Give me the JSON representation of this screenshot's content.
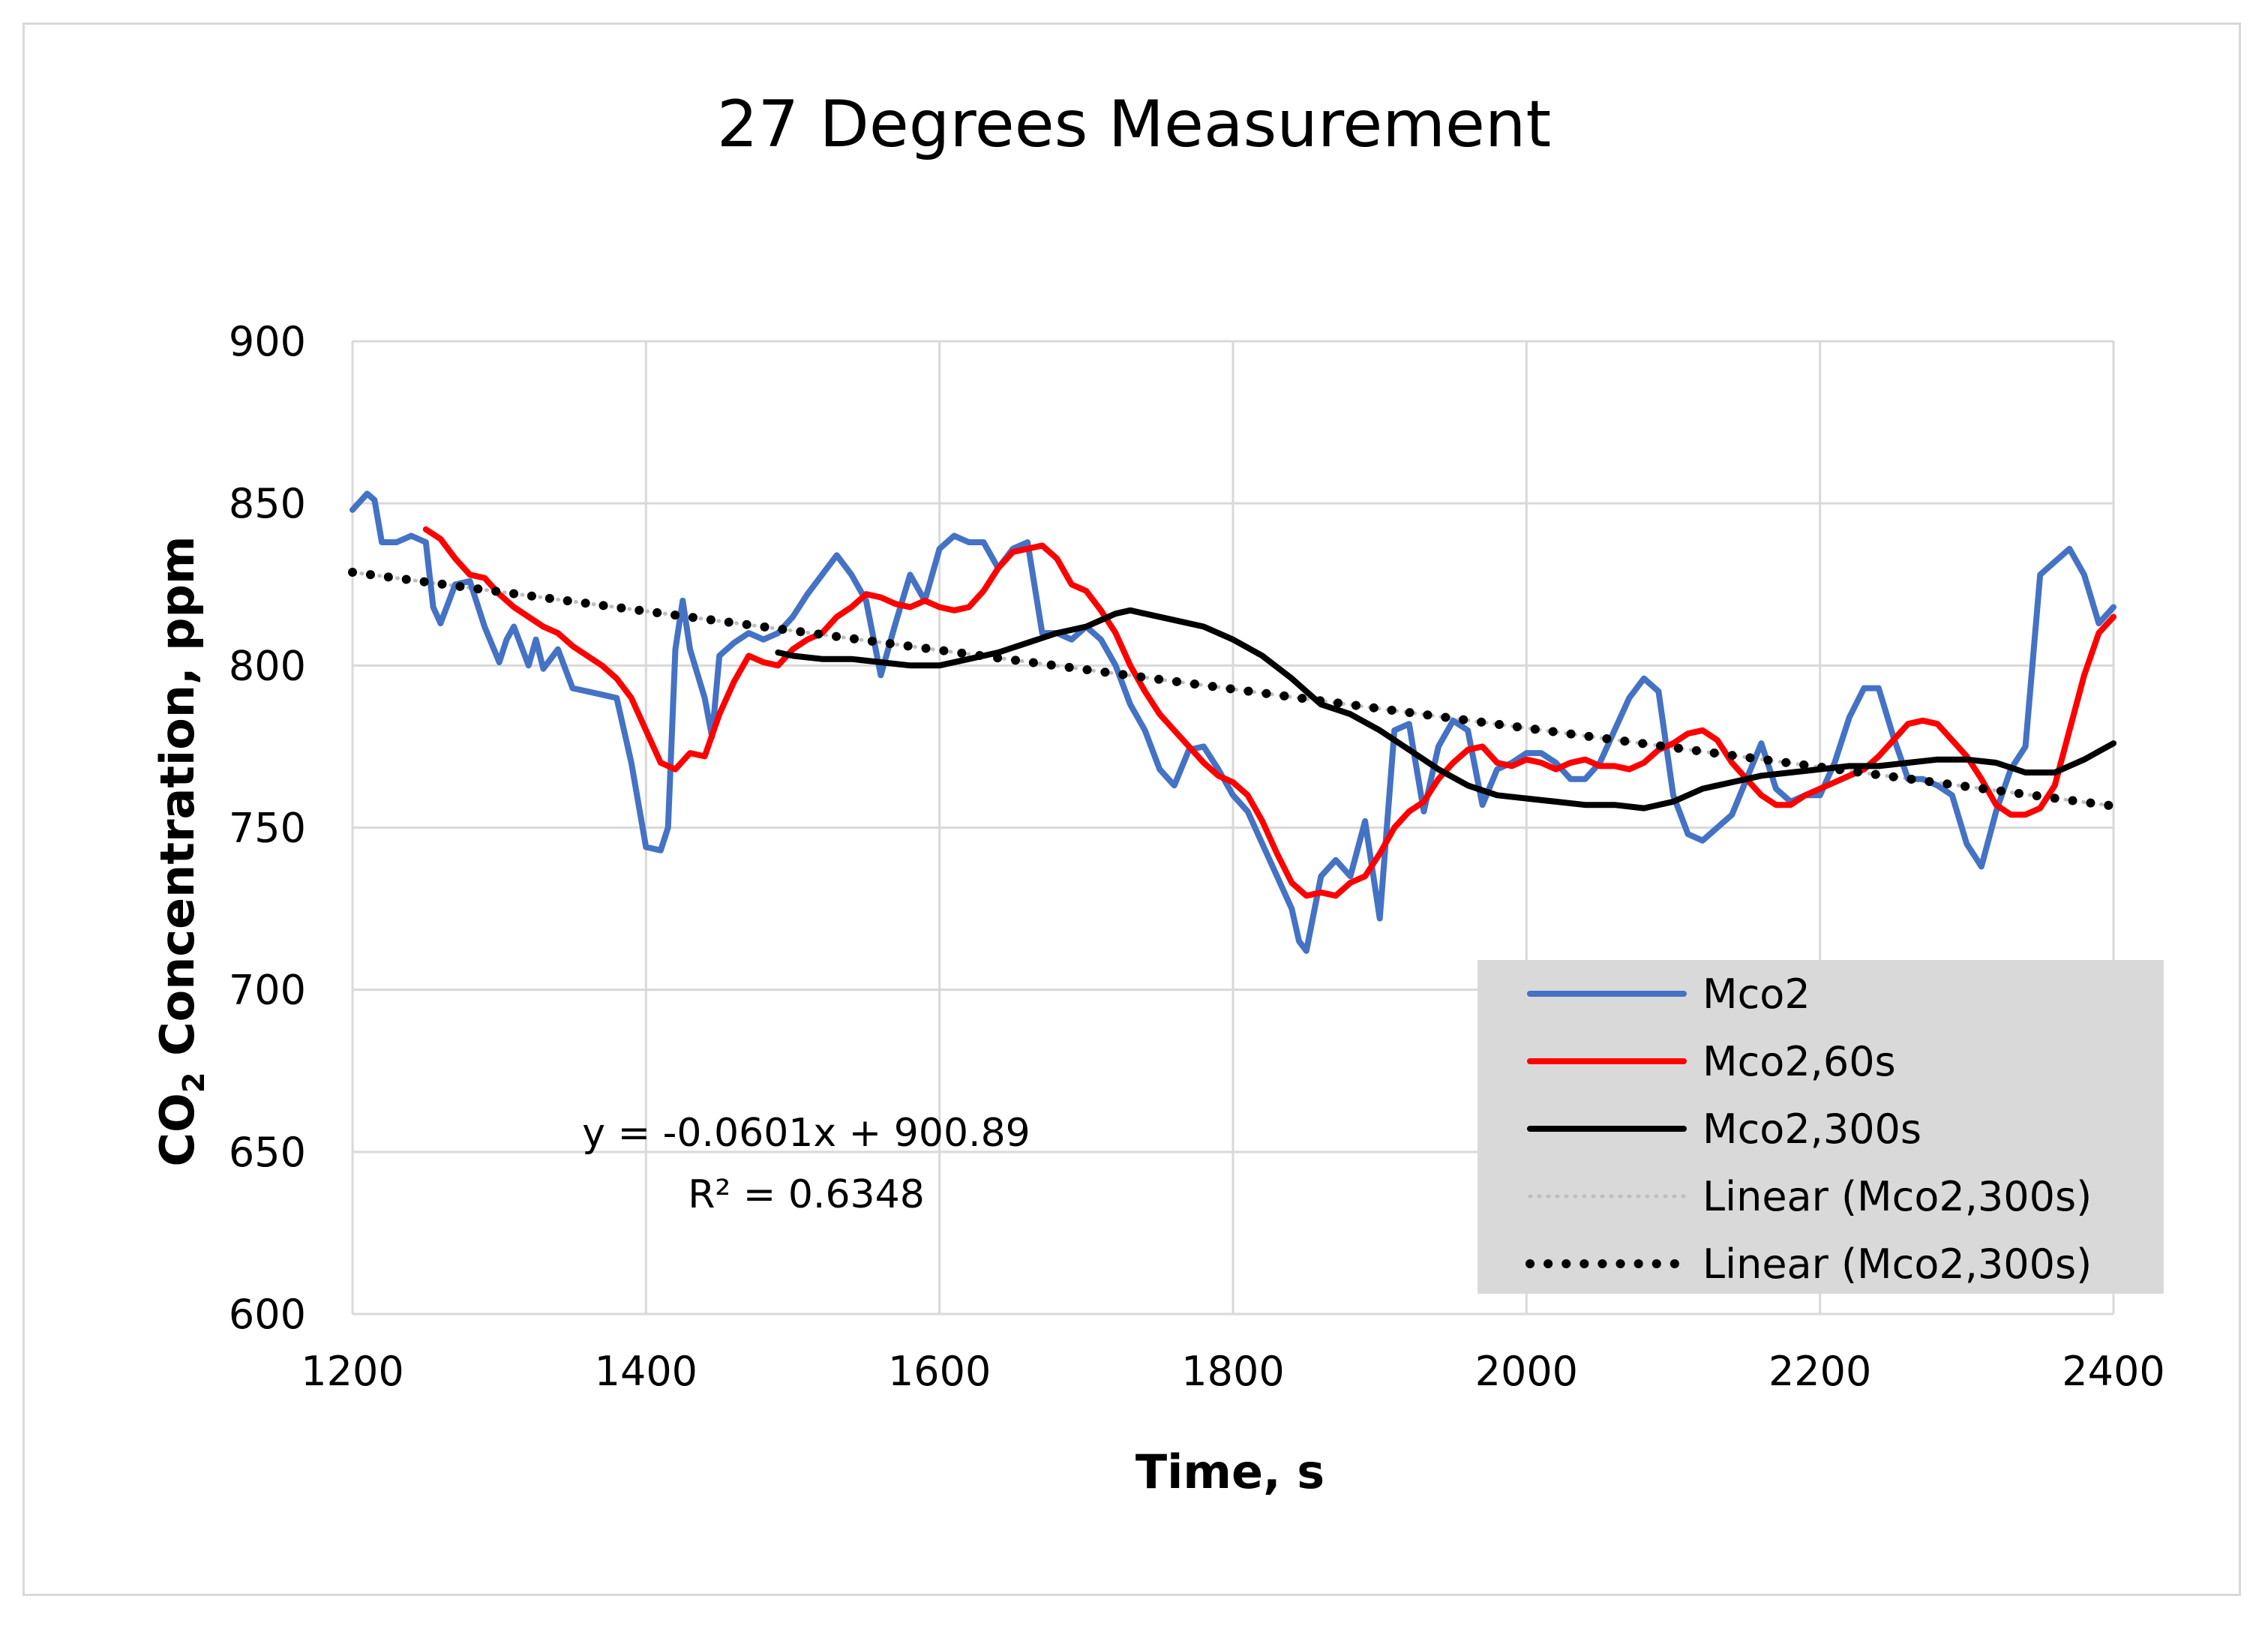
{
  "chart_data": {
    "type": "line",
    "title": "27 Degrees Measurement",
    "xlabel": "Time, s",
    "ylabel": {
      "prefix": "CO",
      "sub": "2",
      "suffix": " Concentration, ppm"
    },
    "xlim": [
      1200,
      2400
    ],
    "ylim": [
      600,
      900
    ],
    "xticks": [
      1200,
      1400,
      1600,
      1800,
      2000,
      2200,
      2400
    ],
    "yticks": [
      600,
      650,
      700,
      750,
      800,
      850,
      900
    ],
    "grid": true,
    "legend_position": "bottom-right",
    "trendline_equation": "y = -0.0601x + 900.89",
    "trendline_r2": "R² = 0.6348",
    "series": [
      {
        "name": "Mco2",
        "color": "#4472c4",
        "style": "solid",
        "x": [
          1200,
          1210,
          1215,
          1220,
          1230,
          1240,
          1250,
          1255,
          1260,
          1270,
          1280,
          1290,
          1300,
          1305,
          1310,
          1320,
          1325,
          1330,
          1340,
          1345,
          1350,
          1360,
          1370,
          1380,
          1390,
          1400,
          1410,
          1415,
          1420,
          1425,
          1430,
          1440,
          1445,
          1450,
          1460,
          1470,
          1480,
          1490,
          1500,
          1510,
          1520,
          1530,
          1540,
          1550,
          1560,
          1570,
          1580,
          1590,
          1600,
          1610,
          1620,
          1630,
          1640,
          1650,
          1660,
          1670,
          1680,
          1690,
          1700,
          1710,
          1720,
          1730,
          1740,
          1750,
          1760,
          1770,
          1780,
          1790,
          1800,
          1810,
          1820,
          1830,
          1840,
          1845,
          1850,
          1860,
          1870,
          1880,
          1890,
          1900,
          1910,
          1920,
          1930,
          1940,
          1950,
          1960,
          1970,
          1980,
          1990,
          2000,
          2010,
          2020,
          2030,
          2040,
          2050,
          2060,
          2070,
          2080,
          2090,
          2100,
          2110,
          2120,
          2130,
          2140,
          2150,
          2160,
          2170,
          2180,
          2190,
          2200,
          2210,
          2220,
          2230,
          2240,
          2250,
          2260,
          2270,
          2280,
          2290,
          2300,
          2310,
          2320,
          2330,
          2340,
          2350,
          2360,
          2370,
          2380,
          2390,
          2400
        ],
        "values": [
          848,
          853,
          851,
          838,
          838,
          840,
          838,
          818,
          813,
          825,
          826,
          812,
          801,
          808,
          812,
          800,
          808,
          799,
          805,
          799,
          793,
          792,
          791,
          790,
          770,
          744,
          743,
          750,
          805,
          820,
          805,
          790,
          778,
          803,
          807,
          810,
          808,
          810,
          815,
          822,
          828,
          834,
          828,
          820,
          797,
          813,
          828,
          820,
          836,
          840,
          838,
          838,
          830,
          836,
          838,
          810,
          810,
          808,
          812,
          808,
          800,
          788,
          780,
          768,
          763,
          774,
          775,
          768,
          760,
          755,
          745,
          735,
          725,
          715,
          712,
          735,
          740,
          735,
          752,
          722,
          780,
          782,
          755,
          775,
          783,
          780,
          757,
          768,
          770,
          773,
          773,
          770,
          765,
          765,
          770,
          780,
          790,
          796,
          792,
          760,
          748,
          746,
          750,
          754,
          765,
          776,
          762,
          758,
          760,
          760,
          770,
          784,
          793,
          793,
          778,
          765,
          765,
          763,
          760,
          745,
          738,
          755,
          768,
          775,
          828,
          832,
          836,
          828,
          813,
          818
        ]
      },
      {
        "name": "Mco2,60s",
        "color": "#ff0000",
        "style": "solid",
        "x": [
          1250,
          1260,
          1270,
          1280,
          1290,
          1300,
          1310,
          1320,
          1330,
          1340,
          1350,
          1360,
          1370,
          1380,
          1390,
          1400,
          1410,
          1420,
          1430,
          1440,
          1450,
          1460,
          1470,
          1480,
          1490,
          1500,
          1510,
          1520,
          1530,
          1540,
          1550,
          1560,
          1570,
          1580,
          1590,
          1600,
          1610,
          1620,
          1630,
          1640,
          1650,
          1660,
          1670,
          1680,
          1690,
          1700,
          1710,
          1720,
          1730,
          1740,
          1750,
          1760,
          1770,
          1780,
          1790,
          1800,
          1810,
          1820,
          1830,
          1840,
          1850,
          1860,
          1870,
          1880,
          1890,
          1900,
          1910,
          1920,
          1930,
          1940,
          1950,
          1960,
          1970,
          1980,
          1990,
          2000,
          2010,
          2020,
          2030,
          2040,
          2050,
          2060,
          2070,
          2080,
          2090,
          2100,
          2110,
          2120,
          2130,
          2140,
          2150,
          2160,
          2170,
          2180,
          2190,
          2200,
          2210,
          2220,
          2230,
          2240,
          2250,
          2260,
          2270,
          2280,
          2290,
          2300,
          2310,
          2320,
          2330,
          2340,
          2350,
          2360,
          2370,
          2380,
          2390,
          2400
        ],
        "values": [
          842,
          839,
          833,
          828,
          827,
          822,
          818,
          815,
          812,
          810,
          806,
          803,
          800,
          796,
          790,
          780,
          770,
          768,
          773,
          772,
          785,
          795,
          803,
          801,
          800,
          805,
          808,
          810,
          815,
          818,
          822,
          821,
          819,
          818,
          820,
          818,
          817,
          818,
          823,
          830,
          835,
          836,
          837,
          833,
          825,
          823,
          817,
          810,
          800,
          792,
          785,
          780,
          775,
          770,
          766,
          764,
          760,
          752,
          742,
          733,
          729,
          730,
          729,
          733,
          735,
          742,
          750,
          755,
          758,
          765,
          770,
          774,
          775,
          770,
          769,
          771,
          770,
          768,
          770,
          771,
          769,
          769,
          768,
          770,
          774,
          776,
          779,
          780,
          777,
          770,
          765,
          760,
          757,
          757,
          760,
          762,
          764,
          766,
          768,
          772,
          777,
          782,
          783,
          782,
          777,
          772,
          765,
          757,
          754,
          754,
          756,
          763,
          780,
          797,
          810,
          815
        ]
      },
      {
        "name": "Mco2,300s",
        "color": "#000000",
        "style": "solid",
        "x": [
          1490,
          1500,
          1520,
          1540,
          1560,
          1580,
          1600,
          1620,
          1640,
          1660,
          1680,
          1700,
          1720,
          1730,
          1740,
          1760,
          1780,
          1800,
          1820,
          1840,
          1860,
          1880,
          1900,
          1920,
          1940,
          1960,
          1980,
          2000,
          2020,
          2040,
          2060,
          2080,
          2100,
          2120,
          2140,
          2160,
          2180,
          2200,
          2220,
          2240,
          2260,
          2280,
          2300,
          2320,
          2340,
          2360,
          2380,
          2400
        ],
        "values": [
          804,
          803,
          802,
          802,
          801,
          800,
          800,
          802,
          804,
          807,
          810,
          812,
          816,
          817,
          816,
          814,
          812,
          808,
          803,
          796,
          788,
          785,
          780,
          774,
          768,
          763,
          760,
          759,
          758,
          757,
          757,
          756,
          758,
          762,
          764,
          766,
          767,
          768,
          769,
          769,
          770,
          771,
          771,
          770,
          767,
          767,
          771,
          776
        ]
      },
      {
        "name": "Linear (Mco2,300s)",
        "color": "#bfbfbf",
        "style": "dotted-small",
        "x": [
          1200,
          2400
        ],
        "values": [
          828.77,
          756.65
        ]
      },
      {
        "name": "Linear (Mco2,300s)",
        "color": "#000000",
        "style": "dotted-large",
        "x": [
          1200,
          2400
        ],
        "values": [
          828.77,
          756.65
        ]
      }
    ]
  }
}
